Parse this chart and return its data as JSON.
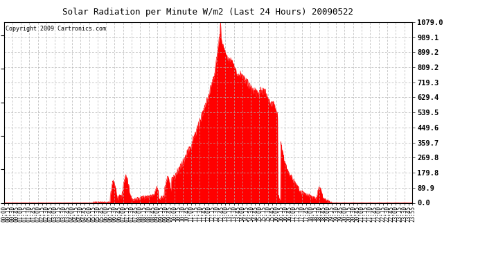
{
  "title": "Solar Radiation per Minute W/m2 (Last 24 Hours) 20090522",
  "copyright": "Copyright 2009 Cartronics.com",
  "background_color": "#ffffff",
  "plot_bg_color": "#ffffff",
  "fill_color": "#ff0000",
  "line_color": "#ff0000",
  "grid_color": "#b0b0b0",
  "dashed_line_color": "#ff0000",
  "yticks": [
    0.0,
    89.9,
    179.8,
    269.8,
    359.7,
    449.6,
    539.5,
    629.4,
    719.3,
    809.2,
    899.2,
    989.1,
    1079.0
  ],
  "ymax": 1079.0,
  "ymin": 0.0,
  "num_minutes": 1440,
  "title_fontsize": 9,
  "copyright_fontsize": 6
}
